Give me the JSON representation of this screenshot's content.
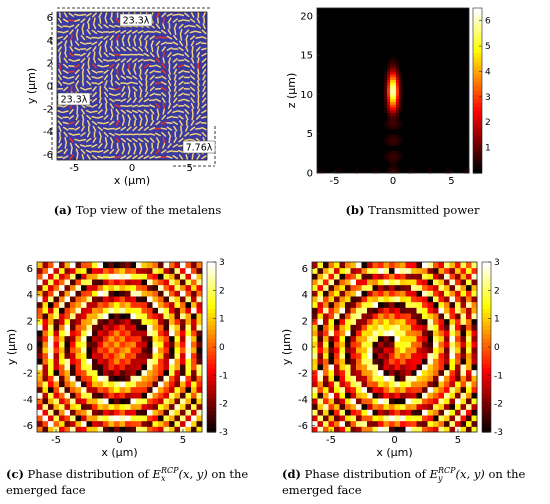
{
  "figure": {
    "panels": [
      {
        "id": "a",
        "caption_letter": "(a)",
        "caption_text": "Top view of the metalens",
        "dimensions": [
          "23.3λ",
          "23.3λ",
          "7.76λ"
        ]
      },
      {
        "id": "b",
        "caption_letter": "(b)",
        "caption_text": "Transmitted power"
      },
      {
        "id": "c",
        "caption_letter": "(c)",
        "caption_pre": "Phase distribution of ",
        "caption_sym": "E",
        "caption_sub": "x",
        "caption_sup": "RCP",
        "caption_args": "(x, y)",
        "caption_post": " on the",
        "caption_line2": "emerged face"
      },
      {
        "id": "d",
        "caption_letter": "(d)",
        "caption_pre": "Phase distribution of ",
        "caption_sym": "E",
        "caption_sub": "y",
        "caption_sup": "RCP",
        "caption_args": "(x, y)",
        "caption_post": " on the",
        "caption_line2": "emerged face"
      }
    ]
  },
  "chart_data": [
    {
      "type": "heatmap",
      "panel": "a",
      "xlabel": "x (μm)",
      "ylabel": "y (μm)",
      "xlim": [
        -6.5,
        6.5
      ],
      "ylim": [
        -6.5,
        6.5
      ],
      "xticks": [
        "-5",
        "0",
        "5"
      ],
      "yticks": [
        "6",
        "4",
        "2",
        "0",
        "-2",
        "-4",
        "-6"
      ],
      "colors": {
        "background": "#3a3aa0",
        "element": "#f2d27a",
        "element_marked": "#e83030"
      }
    },
    {
      "type": "heatmap",
      "panel": "b",
      "xlabel": "",
      "ylabel": "z (μm)",
      "xlim": [
        -6.5,
        6.5
      ],
      "ylim": [
        0,
        21
      ],
      "xticks": [
        "-5",
        "0",
        "5"
      ],
      "yticks": [
        "20",
        "15",
        "10",
        "5",
        "0"
      ],
      "colorbar_ticks": [
        "6",
        "5",
        "4",
        "3",
        "2",
        "1"
      ],
      "colorbar_range": [
        0,
        6.5
      ],
      "focus": {
        "x": 0,
        "z": 10.5
      }
    },
    {
      "type": "heatmap",
      "panel": "c",
      "xlabel": "x (μm)",
      "ylabel": "y (μm)",
      "xlim": [
        -6.5,
        6.5
      ],
      "ylim": [
        -6.5,
        6.5
      ],
      "xticks": [
        "-5",
        "0",
        "5"
      ],
      "yticks": [
        "6",
        "4",
        "2",
        "0",
        "-2",
        "-4",
        "-6"
      ],
      "colorbar_ticks": [
        "3",
        "2",
        "1",
        "0",
        "-1",
        "-2",
        "-3"
      ],
      "colorbar_range": [
        -3,
        3
      ]
    },
    {
      "type": "heatmap",
      "panel": "d",
      "xlabel": "x (μm)",
      "ylabel": "y (μm)",
      "xlim": [
        -6.5,
        6.5
      ],
      "ylim": [
        -6.5,
        6.5
      ],
      "xticks": [
        "-5",
        "0",
        "5"
      ],
      "yticks": [
        "6",
        "4",
        "2",
        "0",
        "-2",
        "-4",
        "-6"
      ],
      "colorbar_ticks": [
        "3",
        "2",
        "1",
        "0",
        "-1",
        "-2",
        "-3"
      ],
      "colorbar_range": [
        -3,
        3
      ]
    }
  ]
}
